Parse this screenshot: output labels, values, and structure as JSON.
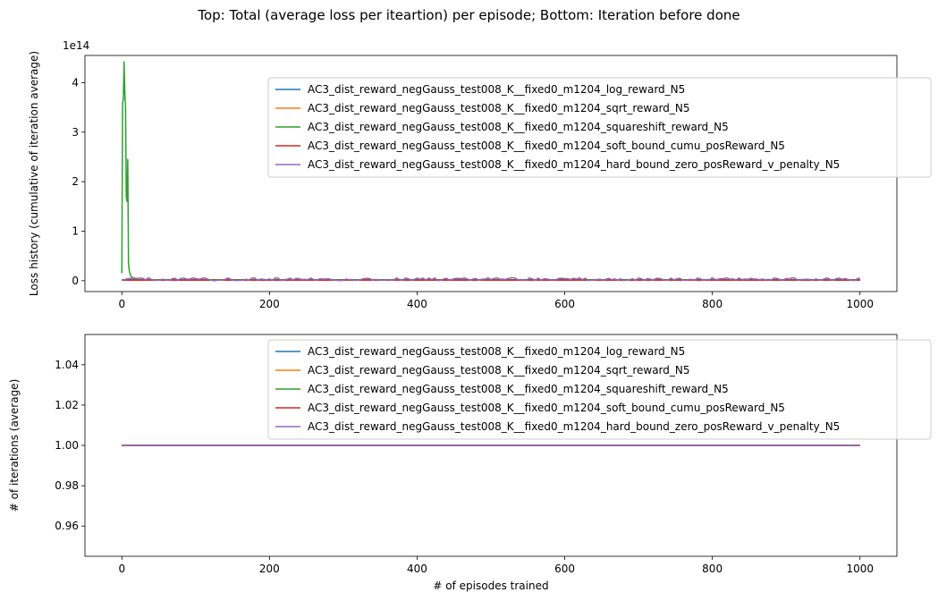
{
  "suptitle": "Top: Total (average loss per iteartion) per episode; Bottom: Iteration before done",
  "colors": {
    "blue": "#1f77b4",
    "orange": "#ff7f0e",
    "green": "#2ca02c",
    "red": "#d62728",
    "purple": "#9467bd"
  },
  "chart_data": [
    {
      "type": "line",
      "title": "",
      "xlabel": "",
      "ylabel": "Loss history (cumulative of iteration average)",
      "y_offset_label": "1e14",
      "xlim": [
        -50,
        1050
      ],
      "ylim": [
        -0.22,
        4.55
      ],
      "xticks": [
        0,
        200,
        400,
        600,
        800,
        1000
      ],
      "xtick_labels": [
        "0",
        "200",
        "400",
        "600",
        "800",
        "1000"
      ],
      "yticks": [
        0,
        1,
        2,
        3,
        4
      ],
      "ytick_labels": [
        "0",
        "1",
        "2",
        "3",
        "4"
      ],
      "y_units": "1e14",
      "legend_position": "upper right",
      "grid": false,
      "series": [
        {
          "name": "AC3_dist_reward_negGauss_test008_K__fixed0_m1204_log_reward_N5",
          "color": "#1f77b4",
          "x": [
            0,
            1000
          ],
          "y": [
            0.02,
            0.02
          ]
        },
        {
          "name": "AC3_dist_reward_negGauss_test008_K__fixed0_m1204_sqrt_reward_N5",
          "color": "#ff7f0e",
          "x": [
            0,
            1000
          ],
          "y": [
            0.01,
            0.01
          ]
        },
        {
          "name": "AC3_dist_reward_negGauss_test008_K__fixed0_m1204_squareshift_reward_N5",
          "color": "#2ca02c",
          "x": [
            0,
            1,
            2,
            3,
            4,
            5,
            6,
            7,
            8,
            9,
            10,
            12,
            15,
            20,
            1000
          ],
          "y": [
            0.15,
            3.6,
            3.65,
            4.42,
            3.8,
            3.5,
            1.7,
            1.6,
            2.45,
            0.35,
            0.2,
            0.1,
            0.05,
            0.02,
            0.02
          ]
        },
        {
          "name": "AC3_dist_reward_negGauss_test008_K__fixed0_m1204_soft_bound_cumu_posReward_N5",
          "color": "#d62728",
          "x": [
            0,
            1000
          ],
          "y": [
            0.01,
            0.01
          ]
        },
        {
          "name": "AC3_dist_reward_negGauss_test008_K__fixed0_m1204_hard_bound_zero_posReward_v_penalty_N5",
          "color": "#9467bd",
          "x": [
            0,
            1000
          ],
          "y": [
            0.03,
            0.03
          ],
          "noisy_band": [
            0.0,
            0.06
          ]
        }
      ]
    },
    {
      "type": "line",
      "title": "",
      "xlabel": "# of episodes trained",
      "ylabel": "# of iterations (average)",
      "xlim": [
        -50,
        1050
      ],
      "ylim": [
        0.945,
        1.055
      ],
      "xticks": [
        0,
        200,
        400,
        600,
        800,
        1000
      ],
      "xtick_labels": [
        "0",
        "200",
        "400",
        "600",
        "800",
        "1000"
      ],
      "yticks": [
        0.96,
        0.98,
        1.0,
        1.02,
        1.04
      ],
      "ytick_labels": [
        "0.96",
        "0.98",
        "1.00",
        "1.02",
        "1.04"
      ],
      "legend_position": "upper right",
      "grid": false,
      "series": [
        {
          "name": "AC3_dist_reward_negGauss_test008_K__fixed0_m1204_log_reward_N5",
          "color": "#1f77b4",
          "x": [
            0,
            1000
          ],
          "y": [
            1.0,
            1.0
          ]
        },
        {
          "name": "AC3_dist_reward_negGauss_test008_K__fixed0_m1204_sqrt_reward_N5",
          "color": "#ff7f0e",
          "x": [
            0,
            1000
          ],
          "y": [
            1.0,
            1.0
          ]
        },
        {
          "name": "AC3_dist_reward_negGauss_test008_K__fixed0_m1204_squareshift_reward_N5",
          "color": "#2ca02c",
          "x": [
            0,
            1000
          ],
          "y": [
            1.0,
            1.0
          ]
        },
        {
          "name": "AC3_dist_reward_negGauss_test008_K__fixed0_m1204_soft_bound_cumu_posReward_N5",
          "color": "#d62728",
          "x": [
            0,
            1000
          ],
          "y": [
            1.0,
            1.0
          ]
        },
        {
          "name": "AC3_dist_reward_negGauss_test008_K__fixed0_m1204_hard_bound_zero_posReward_v_penalty_N5",
          "color": "#9467bd",
          "x": [
            0,
            1000
          ],
          "y": [
            1.0,
            1.0
          ]
        }
      ]
    }
  ]
}
